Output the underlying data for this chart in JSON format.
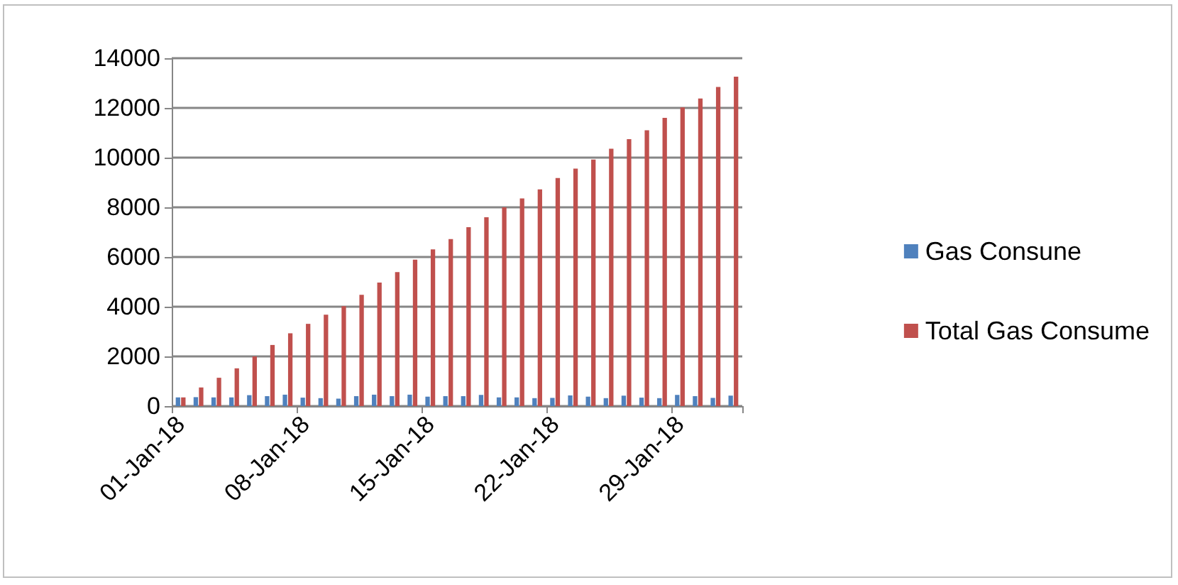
{
  "chart_data": {
    "type": "bar",
    "categories": [
      "01-Jan-18",
      null,
      null,
      null,
      null,
      null,
      null,
      "08-Jan-18",
      null,
      null,
      null,
      null,
      null,
      null,
      "15-Jan-18",
      null,
      null,
      null,
      null,
      null,
      null,
      "22-Jan-18",
      null,
      null,
      null,
      null,
      null,
      null,
      "29-Jan-18",
      null,
      null,
      null
    ],
    "series": [
      {
        "name": "Gas Consune",
        "color": "#4f81bd",
        "values": [
          350,
          360,
          350,
          350,
          440,
          400,
          460,
          340,
          320,
          300,
          400,
          460,
          400,
          460,
          380,
          400,
          400,
          450,
          350,
          350,
          320,
          330,
          430,
          380,
          320,
          420,
          340,
          320,
          450,
          400,
          330,
          420
        ]
      },
      {
        "name": "Total Gas Consume",
        "color": "#c0504d",
        "values": [
          350,
          750,
          1140,
          1520,
          2000,
          2460,
          2930,
          3310,
          3680,
          4020,
          4480,
          4970,
          5390,
          5890,
          6310,
          6720,
          7200,
          7600,
          8000,
          8360,
          8720,
          9180,
          9560,
          9920,
          10360,
          10740,
          11100,
          11600,
          12020,
          12380,
          12840,
          13260
        ]
      }
    ],
    "ylim": [
      0,
      14000
    ],
    "yticks": [
      0,
      2000,
      4000,
      6000,
      8000,
      10000,
      12000,
      14000
    ],
    "grid": "y",
    "legend": "right"
  }
}
